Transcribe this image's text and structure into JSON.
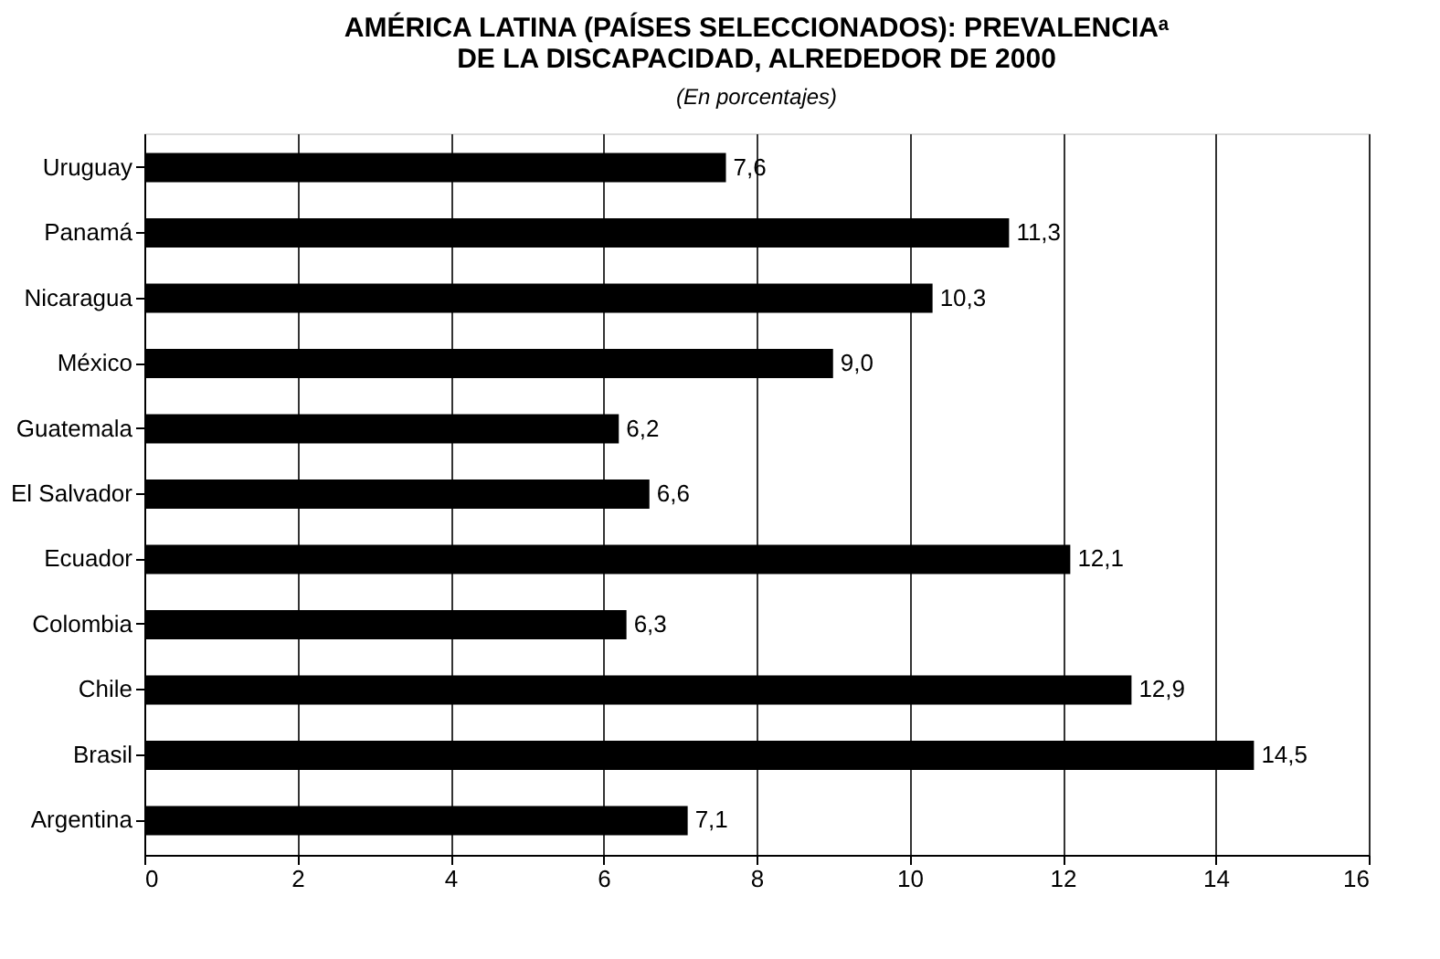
{
  "chart_data": {
    "type": "bar",
    "orientation": "horizontal",
    "title": "AMÉRICA LATINA (PAÍSES SELECCIONADOS): PREVALENCIAᵃ\nDE LA DISCAPACIDAD, ALREDEDOR DE 2000",
    "subtitle": "(En porcentajes)",
    "categories": [
      "Uruguay",
      "Panamá",
      "Nicaragua",
      "México",
      "Guatemala",
      "El Salvador",
      "Ecuador",
      "Colombia",
      "Chile",
      "Brasil",
      "Argentina"
    ],
    "values": [
      7.6,
      11.3,
      10.3,
      9.0,
      6.2,
      6.6,
      12.1,
      6.3,
      12.9,
      14.5,
      7.1
    ],
    "value_labels": [
      "7,6",
      "11,3",
      "10,3",
      "9,0",
      "6,2",
      "6,6",
      "12,1",
      "6,3",
      "12,9",
      "14,5",
      "7,1"
    ],
    "color": "#000000",
    "xlim": [
      0,
      16
    ],
    "xticks": [
      0,
      2,
      4,
      6,
      8,
      10,
      12,
      14,
      16
    ],
    "grid": "x"
  }
}
